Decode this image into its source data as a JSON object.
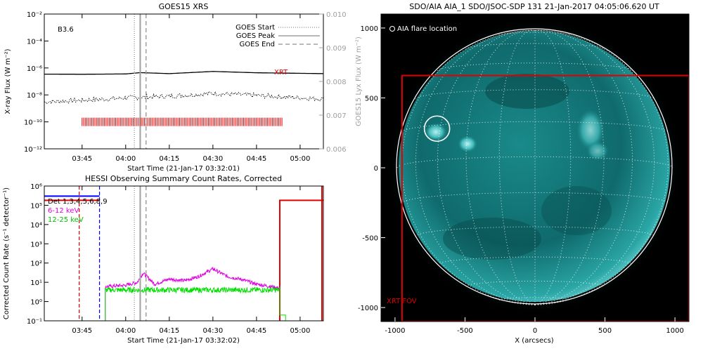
{
  "colors": {
    "panel_bg": "#ffffff",
    "axis": "#000000",
    "xrt_red": "#e00000",
    "det_blue": "#0000ff",
    "band_6_12": "#e000e0",
    "band_12_25": "#00e000",
    "goes_grey": "#a0a0a0",
    "sun_teal": "#1f9a9a",
    "space_bg": "#000000"
  },
  "chart_data": [
    {
      "type": "line",
      "title": "GOES15 XRS",
      "xlabel": "Start Time (21-Jan-17 03:32:01)",
      "ylabel": "X-ray Flux (W m⁻²)",
      "y2label": "GOES15 Lyx Flux (W m⁻²)",
      "yscale": "log",
      "ylim": [
        1e-12,
        0.01
      ],
      "y_ticks": [
        "10⁻²",
        "10⁻⁴",
        "10⁻⁶",
        "10⁻⁸",
        "10⁻¹⁰",
        "10⁻¹²"
      ],
      "y2lim": [
        0.006,
        0.01
      ],
      "y2_ticks": [
        "0.010",
        "0.009",
        "0.008",
        "0.007",
        "0.006"
      ],
      "xlim": [
        "03:32",
        "05:08"
      ],
      "x_ticks": [
        "03:45",
        "04:00",
        "04:15",
        "04:30",
        "04:45",
        "05:00"
      ],
      "annotation": "B3.6",
      "xrt_label": "XRT",
      "legend": [
        "GOES Start",
        "GOES Peak",
        "GOES End"
      ],
      "legend_position": "top-right",
      "goes_times": {
        "start": "04:03",
        "peak": "04:05",
        "end": "04:07"
      },
      "series": [
        {
          "name": "long",
          "style": "solid",
          "x": [
            "03:32",
            "03:45",
            "04:00",
            "04:05",
            "04:15",
            "04:30",
            "04:45",
            "05:08"
          ],
          "y": [
            3.5e-07,
            3.4e-07,
            3.6e-07,
            4.5e-07,
            3.8e-07,
            5.5e-07,
            4.4e-07,
            3.8e-07
          ]
        },
        {
          "name": "short",
          "style": "dotted",
          "x": [
            "03:32",
            "03:45",
            "04:00",
            "04:15",
            "04:30",
            "04:45",
            "05:08"
          ],
          "y": [
            3e-09,
            4e-09,
            6e-09,
            8e-09,
            1.3e-08,
            9e-09,
            5e-09
          ]
        }
      ],
      "xrt_observations": {
        "start": "03:45",
        "end": "04:54",
        "level": 1e-10
      }
    },
    {
      "type": "line",
      "title": "HESSI Observing Summary Count Rates, Corrected",
      "xlabel": "Start Time (21-Jan-17 03:32:02)",
      "ylabel": "Corrected Count Rate (s⁻¹ detector⁻¹)",
      "yscale": "log",
      "ylim": [
        0.1,
        1000000.0
      ],
      "y_ticks": [
        "10⁶",
        "10⁵",
        "10⁴",
        "10³",
        "10²",
        "10¹",
        "10⁰",
        "10⁻¹"
      ],
      "xlim": [
        "03:32",
        "05:08"
      ],
      "x_ticks": [
        "03:45",
        "04:00",
        "04:15",
        "04:30",
        "04:45",
        "05:00"
      ],
      "legend": [
        "Det 1,3,4,5,6,8,9",
        "6-12 keV",
        "12-25 keV"
      ],
      "legend_position": "top-left",
      "series": [
        {
          "name": "6-12 keV",
          "x": [
            "03:53",
            "04:00",
            "04:04",
            "04:06",
            "04:10",
            "04:15",
            "04:20",
            "04:25",
            "04:30",
            "04:35",
            "04:40",
            "04:45",
            "04:50",
            "04:53"
          ],
          "y": [
            6,
            7,
            10,
            30,
            8,
            15,
            12,
            20,
            50,
            20,
            14,
            8,
            6,
            5
          ]
        },
        {
          "name": "12-25 keV",
          "x": [
            "03:53",
            "04:53"
          ],
          "y": [
            4,
            4
          ]
        }
      ],
      "markers": {
        "det_blue": "03:51",
        "red_dashed": "03:44",
        "red_step": "04:53",
        "goes_start": "04:03",
        "goes_peak": "04:05",
        "goes_end": "04:07"
      }
    },
    {
      "type": "heatmap",
      "title": "SDO/AIA AIA_1 SDO/JSOC-SDP 131 21-Jan-2017 04:05:06.620 UT",
      "xlabel": "X (arcsecs)",
      "ylabel": "",
      "xlim": [
        -1100,
        1100
      ],
      "ylim": [
        -1100,
        1100
      ],
      "x_ticks": [
        "-1000",
        "-500",
        "0",
        "500",
        "1000"
      ],
      "y_ticks": [
        "1000",
        "500",
        "0",
        "-500",
        "-1000"
      ],
      "legend": [
        "AIA flare location"
      ],
      "legend_position": "top-left",
      "xrt_fov_label": "XRT FOV",
      "flare_location_arcsec": [
        -700,
        280
      ],
      "xrt_fov_arcsec": {
        "x": [
          -950,
          1100
        ],
        "y": [
          -1100,
          660
        ]
      }
    }
  ]
}
